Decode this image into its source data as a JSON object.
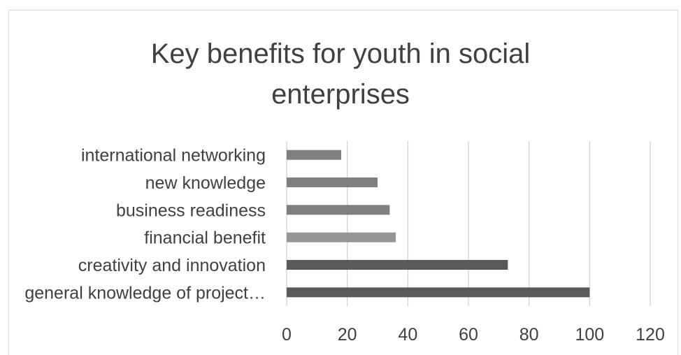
{
  "chart_data": {
    "type": "bar",
    "orientation": "horizontal",
    "title_lines": [
      "Key benefits for youth in social",
      "enterprises"
    ],
    "categories": [
      "international networking",
      "new knowledge",
      "business readiness",
      "financial benefit",
      "creativity and innovation",
      "general knowledge of project…"
    ],
    "values": [
      18,
      30,
      34,
      36,
      73,
      100
    ],
    "bar_colors": [
      "#7f7f7f",
      "#7f7f7f",
      "#7f7f7f",
      "#969696",
      "#595959",
      "#595959"
    ],
    "xlim": [
      0,
      120
    ],
    "xticks": [
      0,
      20,
      40,
      60,
      80,
      100,
      120
    ],
    "grid": true,
    "legend": "none"
  }
}
